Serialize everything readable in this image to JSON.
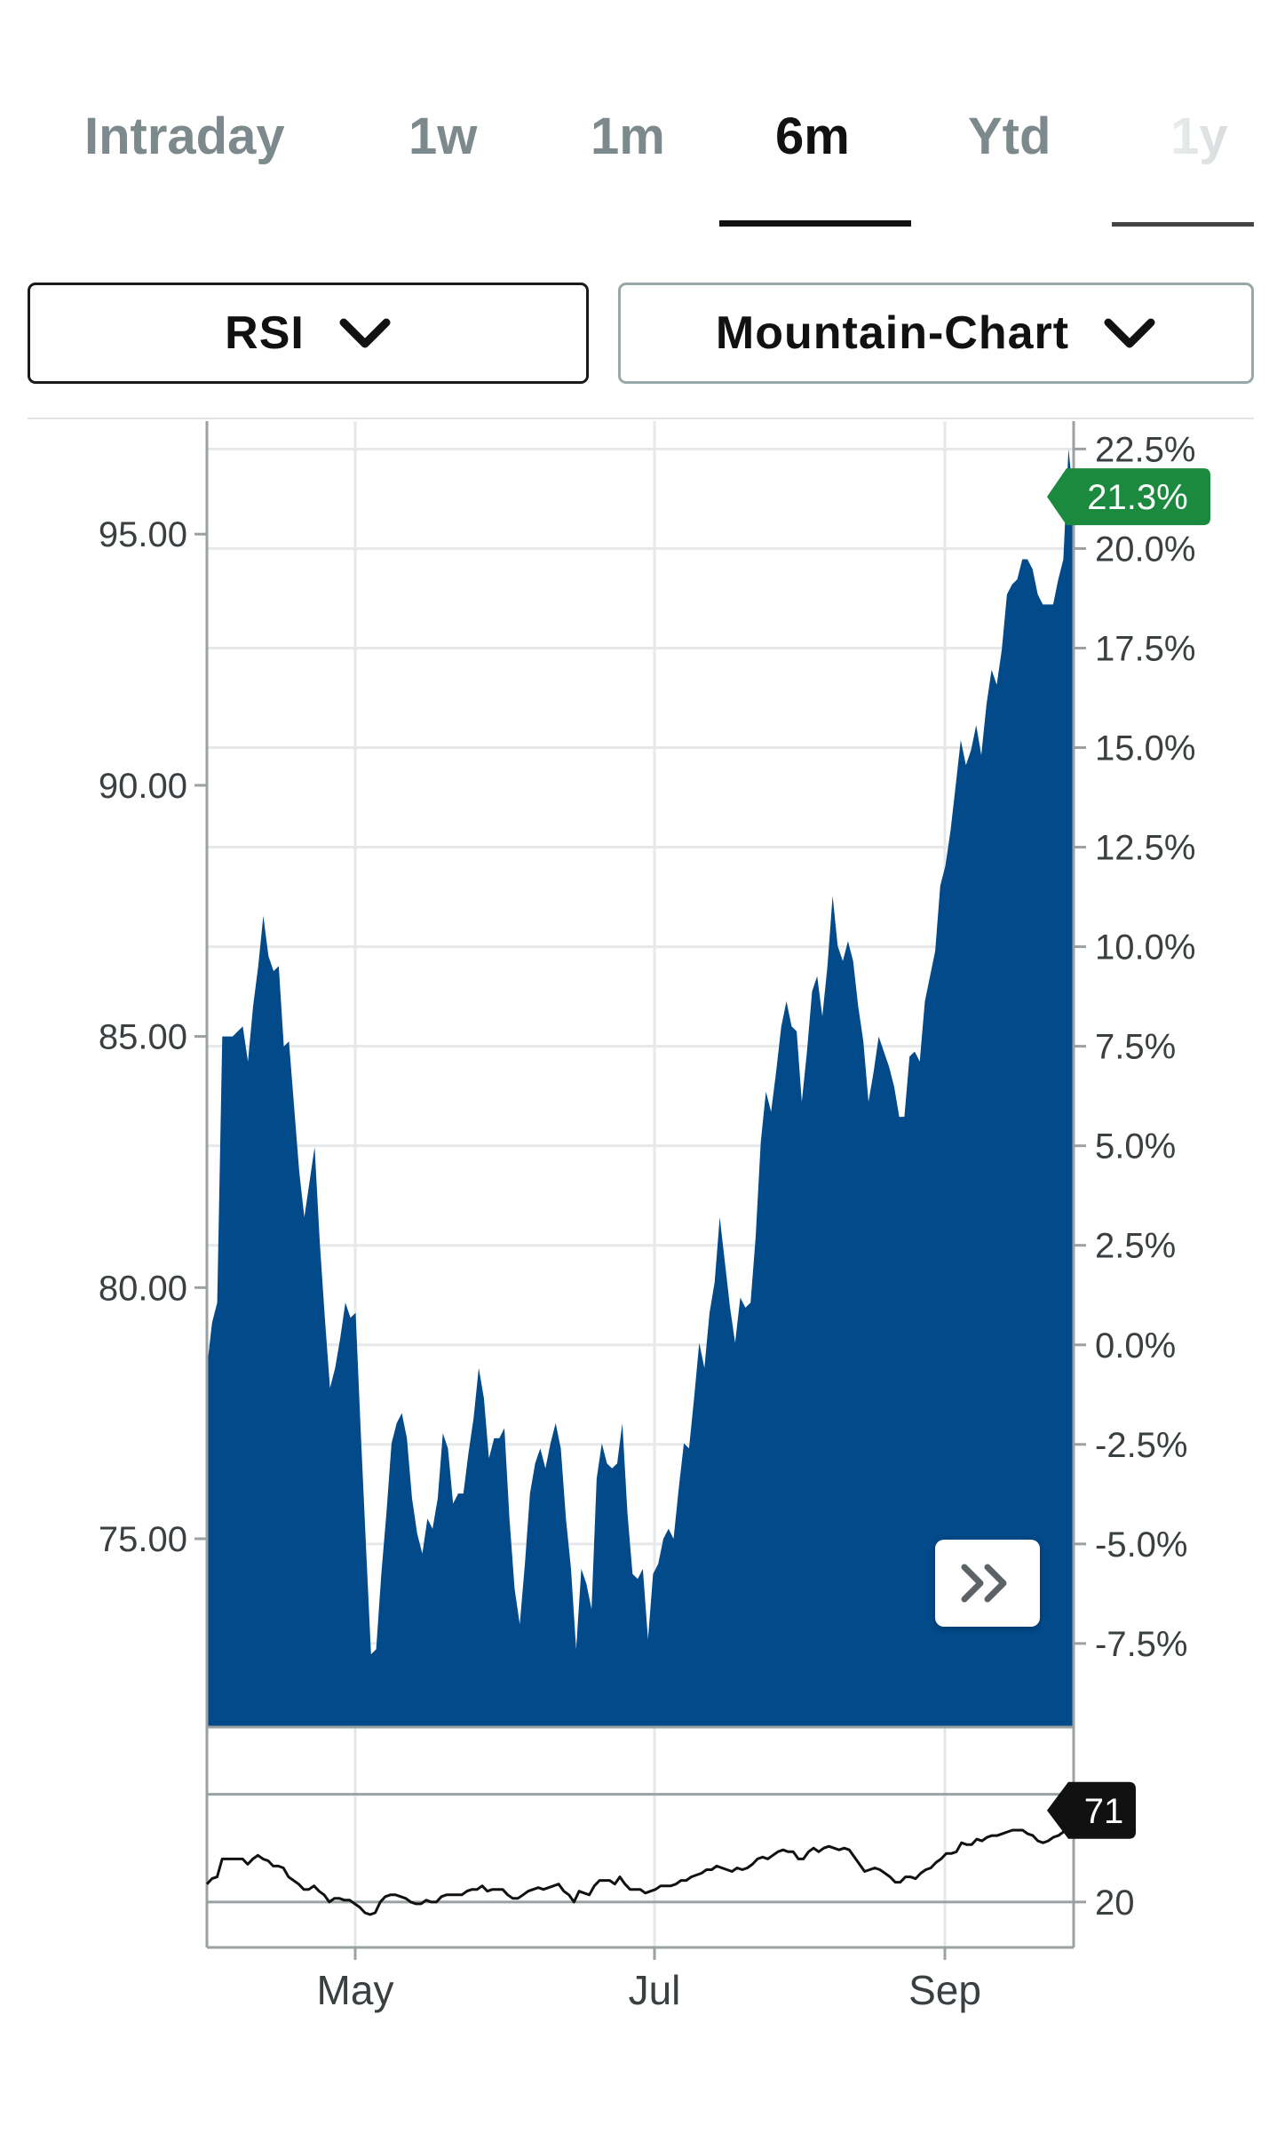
{
  "tabs": [
    {
      "label": "Intraday",
      "active": false
    },
    {
      "label": "1w",
      "active": false
    },
    {
      "label": "1m",
      "active": false
    },
    {
      "label": "6m",
      "active": true
    },
    {
      "label": "Ytd",
      "active": false
    },
    {
      "label": "1y",
      "active": false
    }
  ],
  "indicator_dropdown": {
    "label": "RSI",
    "icon": "chevron-down-icon"
  },
  "chart_type_dropdown": {
    "label": "Mountain-Chart",
    "icon": "chevron-down-icon"
  },
  "colors": {
    "mountain_fill": "#034a8a",
    "badge_green": "#1c8a3e",
    "rsi_badge": "#111111",
    "tab_inactive": "#7d8a8d",
    "tab_active": "#111111"
  },
  "chart_data": [
    {
      "type": "area",
      "x_ticks": [
        "May",
        "Jul",
        "Sep"
      ],
      "y_left_ticks": [
        "95.00",
        "90.00",
        "85.00",
        "80.00",
        "75.00"
      ],
      "y_right_ticks": [
        "22.5%",
        "20.0%",
        "17.5%",
        "15.0%",
        "12.5%",
        "10.0%",
        "7.5%",
        "5.0%",
        "2.5%",
        "0.0%",
        "-2.5%",
        "-5.0%",
        "-7.5%"
      ],
      "ylim_left": [
        71.25,
        97.25
      ],
      "ylim_right_pct": [
        -9.6,
        23.2
      ],
      "current_change_label": "21.3%",
      "current_change": 21.3,
      "series": [
        {
          "values": [
            78.4,
            79.3,
            79.7,
            85.0,
            85.0,
            85.0,
            85.1,
            85.2,
            84.5,
            85.6,
            86.4,
            87.4,
            86.6,
            86.3,
            86.4,
            84.8,
            84.9,
            83.6,
            82.3,
            81.4,
            82.1,
            82.8,
            80.9,
            79.4,
            78.0,
            78.4,
            79.0,
            79.7,
            79.4,
            79.5,
            77.1,
            74.9,
            72.7,
            72.8,
            74.3,
            75.5,
            76.9,
            77.3,
            77.5,
            77.0,
            75.8,
            75.1,
            74.7,
            75.4,
            75.2,
            75.8,
            77.1,
            76.8,
            75.7,
            75.9,
            75.9,
            76.7,
            77.4,
            78.4,
            77.8,
            76.6,
            77.0,
            77.0,
            77.2,
            75.4,
            74.0,
            73.3,
            74.5,
            75.9,
            76.5,
            76.8,
            76.4,
            76.9,
            77.3,
            76.8,
            75.4,
            74.4,
            72.8,
            74.4,
            74.1,
            73.6,
            76.2,
            76.9,
            76.5,
            76.4,
            76.5,
            77.3,
            75.5,
            74.3,
            74.2,
            74.4,
            73.0,
            74.3,
            74.5,
            75.0,
            75.2,
            75.0,
            76.0,
            76.9,
            76.8,
            77.8,
            78.9,
            78.4,
            79.5,
            80.1,
            81.4,
            80.5,
            79.6,
            78.9,
            79.8,
            79.6,
            79.7,
            81.0,
            82.9,
            83.9,
            83.5,
            84.3,
            85.2,
            85.7,
            85.2,
            85.1,
            83.7,
            84.7,
            85.9,
            86.2,
            85.4,
            86.4,
            87.8,
            86.8,
            86.5,
            86.9,
            86.5,
            85.6,
            84.9,
            83.7,
            84.3,
            85.0,
            84.7,
            84.4,
            84.0,
            83.4,
            83.4,
            84.6,
            84.7,
            84.5,
            85.7,
            86.2,
            86.7,
            88.0,
            88.4,
            89.1,
            90.0,
            90.9,
            90.4,
            90.7,
            91.2,
            90.6,
            91.6,
            92.3,
            92.0,
            92.7,
            93.8,
            94.0,
            94.1,
            94.5,
            94.5,
            94.3,
            93.8,
            93.6,
            93.6,
            93.6,
            94.1,
            94.5,
            96.7,
            95.7
          ]
        }
      ]
    },
    {
      "type": "line",
      "title": "RSI",
      "y_ticks": [
        "20"
      ],
      "current_value_label": "71",
      "current_value": 71,
      "ylim": [
        -5.3,
        117.4
      ],
      "series": [
        {
          "values": [
            30,
            33,
            34,
            44,
            44,
            44,
            44,
            44,
            41,
            44,
            46,
            44,
            43,
            40,
            40,
            39,
            34,
            32,
            30,
            27,
            27,
            29,
            26,
            24,
            20,
            22,
            22,
            21,
            21,
            19,
            17,
            14,
            13,
            14,
            20,
            23,
            24,
            24,
            23,
            22,
            20,
            19,
            19,
            21,
            20,
            20,
            23,
            24,
            24,
            24,
            24,
            26,
            27,
            27,
            29,
            26,
            27,
            27,
            27,
            24,
            22,
            22,
            24,
            26,
            27,
            28,
            27,
            28,
            29,
            30,
            26,
            24,
            20,
            26,
            25,
            24,
            29,
            32,
            32,
            32,
            30,
            34,
            30,
            27,
            27,
            27,
            25,
            26,
            27,
            29,
            29,
            29,
            30,
            32,
            32,
            34,
            35,
            36,
            38,
            38,
            40,
            39,
            38,
            37,
            39,
            38,
            39,
            41,
            44,
            45,
            44,
            46,
            48,
            49,
            48,
            48,
            44,
            44,
            48,
            50,
            48,
            50,
            51,
            50,
            49,
            50,
            49,
            45,
            41,
            37,
            38,
            39,
            38,
            36,
            34,
            31,
            31,
            34,
            34,
            33,
            36,
            38,
            39,
            42,
            44,
            47,
            47,
            48,
            53,
            52,
            52,
            55,
            54,
            56,
            57,
            57,
            58,
            59,
            60,
            60,
            60,
            58,
            57,
            54,
            53,
            54,
            56,
            57,
            59,
            71,
            71
          ]
        }
      ]
    }
  ]
}
